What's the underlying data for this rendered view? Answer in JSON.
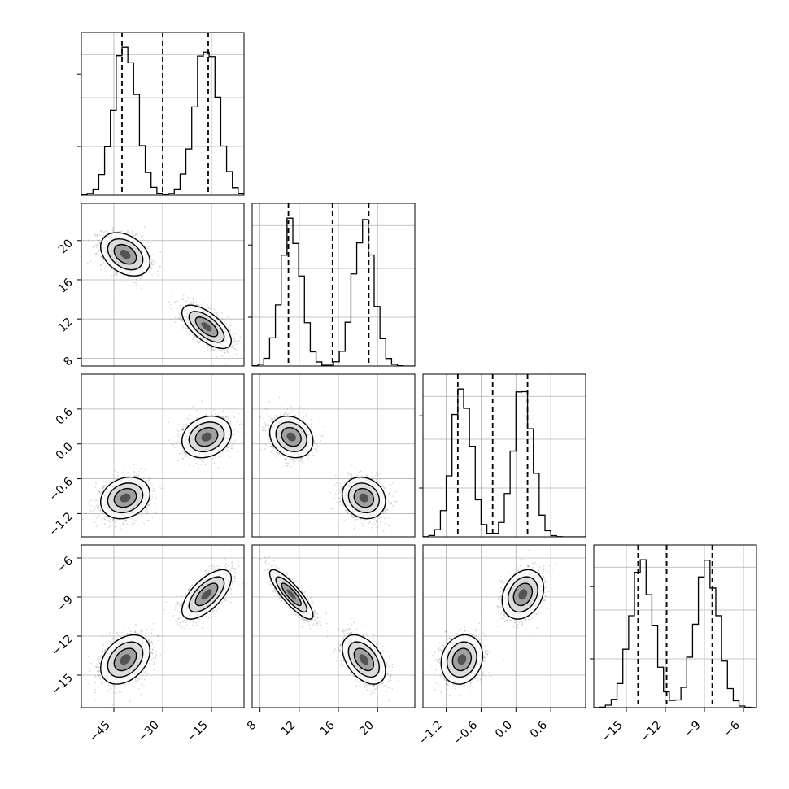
{
  "chart_data": {
    "type": "corner",
    "grid": true,
    "parameters": [
      {
        "range": [
          -55,
          -5
        ],
        "ticks": [
          -45,
          -30,
          -15
        ],
        "tick_labels": [
          "−45",
          "−30",
          "−15"
        ],
        "modes": [
          {
            "mean": -41.5,
            "sd": 3.6,
            "weight": 0.5
          },
          {
            "mean": -16.5,
            "sd": 3.6,
            "weight": 0.5
          }
        ],
        "quantiles": [
          -42.5,
          -30.0,
          -16.0
        ]
      },
      {
        "range": [
          7.2,
          23.8
        ],
        "ticks": [
          8,
          12,
          16,
          20
        ],
        "tick_labels": [
          "8",
          "12",
          "16",
          "20"
        ],
        "modes": [
          {
            "mean": 11.2,
            "sd": 1.05,
            "weight": 0.5
          },
          {
            "mean": 18.6,
            "sd": 1.05,
            "weight": 0.5
          }
        ],
        "quantiles": [
          10.9,
          15.4,
          19.1
        ]
      },
      {
        "range": [
          -1.6,
          1.2
        ],
        "ticks": [
          -1.2,
          -0.6,
          0.0,
          0.6
        ],
        "tick_labels": [
          "−1.2",
          "−0.6",
          "0.0",
          "0.6"
        ],
        "modes": [
          {
            "mean": -0.93,
            "sd": 0.17,
            "weight": 0.5
          },
          {
            "mean": 0.12,
            "sd": 0.17,
            "weight": 0.5
          }
        ],
        "quantiles": [
          -1.0,
          -0.4,
          0.2
        ]
      },
      {
        "range": [
          -17.5,
          -5.0
        ],
        "ticks": [
          -15,
          -12,
          -9,
          -6
        ],
        "tick_labels": [
          "−15",
          "−12",
          "−9",
          "−6"
        ],
        "modes": [
          {
            "mean": -13.8,
            "sd": 0.9,
            "weight": 0.5
          },
          {
            "mean": -8.8,
            "sd": 0.9,
            "weight": 0.5
          }
        ],
        "quantiles": [
          -14.1,
          -11.9,
          -8.4
        ]
      }
    ],
    "clusters": [
      {
        "center": [
          -41.5,
          18.6,
          -0.93,
          -13.8
        ]
      },
      {
        "center": [
          -16.5,
          11.2,
          0.12,
          -8.8
        ]
      }
    ],
    "correlations": {
      "1-0": [
        -0.35,
        -0.65
      ],
      "2-0": [
        0.2,
        0.2
      ],
      "2-1": [
        -0.15,
        -0.2
      ],
      "3-0": [
        0.35,
        0.65
      ],
      "3-1": [
        -0.45,
        -0.85
      ],
      "3-2": [
        0.15,
        0.25
      ]
    },
    "samples_per_cluster": 1600
  }
}
